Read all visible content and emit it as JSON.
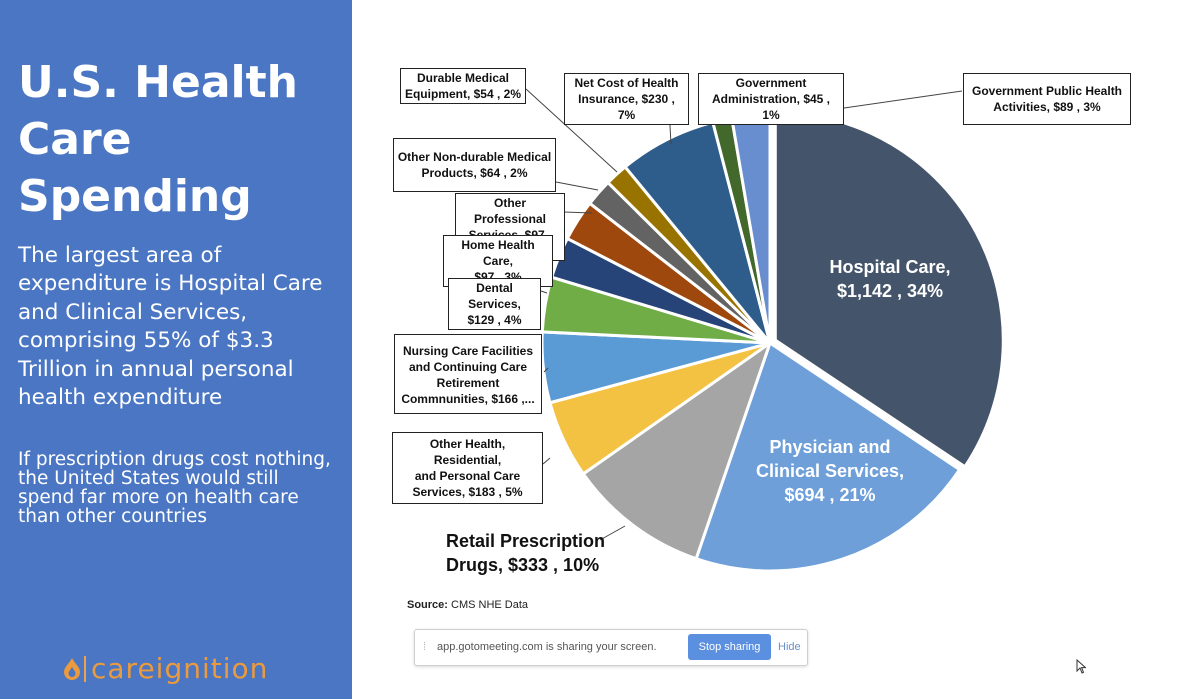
{
  "slide": {
    "title_line1": "U.S. Health",
    "title_line2": "Care Spending",
    "body_main": "The largest area of expenditure is Hospital Care and Clinical Services, comprising 55% of $3.3 Trillion in annual personal health expenditure",
    "body_secondary": "If prescription drugs cost nothing, the United States would still spend far more on health care than other countries",
    "logo_text": "careignition",
    "source_prefix": "Source:",
    "source_text": "CMS NHE Data"
  },
  "share_bar": {
    "message": "app.gotomeeting.com is sharing your screen.",
    "stop_label": "Stop sharing",
    "hide_label": "Hide"
  },
  "chart_data": {
    "type": "pie",
    "unit": "$ billions",
    "slices": [
      {
        "category": "Hospital Care",
        "value": 1142,
        "percent": 34,
        "color": "#44546a",
        "label": "Hospital Care, $1,142 , 34%"
      },
      {
        "category": "Physician and Clinical Services",
        "value": 694,
        "percent": 21,
        "color": "#6e9fd9",
        "label": "Physician and Clinical Services, $694 , 21%"
      },
      {
        "category": "Retail Prescription Drugs",
        "value": 333,
        "percent": 10,
        "color": "#a5a5a5",
        "label": "Retail Prescription Drugs, $333 , 10%"
      },
      {
        "category": "Other Health, Residential, and Personal Care Services",
        "value": 183,
        "percent": 5,
        "color": "#f4c242",
        "label": "Other Health, Residential, and Personal Care Services, $183 , 5%"
      },
      {
        "category": "Nursing Care Facilities and Continuing Care Retirement Commnunities",
        "value": 166,
        "percent": 5,
        "color": "#5b9bd5",
        "label": "Nursing Care Facilities and Continuing Care Retirement Commnunities, $166 ,..."
      },
      {
        "category": "Dental Services",
        "value": 129,
        "percent": 4,
        "color": "#70ad47",
        "label": "Dental Services, $129 , 4%"
      },
      {
        "category": "Home Health Care",
        "value": 97,
        "percent": 3,
        "color": "#264478",
        "label": "Home Health Care, $97 , 3%"
      },
      {
        "category": "Other Professional Services",
        "value": 97,
        "percent": 3,
        "color": "#9e480e",
        "label": "Other Professional Services, $97 , 3%"
      },
      {
        "category": "Other Non-durable Medical Products",
        "value": 64,
        "percent": 2,
        "color": "#636363",
        "label": "Other Non-durable Medical Products, $64 , 2%"
      },
      {
        "category": "Durable Medical Equipment",
        "value": 54,
        "percent": 2,
        "color": "#997300",
        "label": "Durable Medical Equipment, $54 , 2%"
      },
      {
        "category": "Net Cost of Health Insurance",
        "value": 230,
        "percent": 7,
        "color": "#2e5d8c",
        "label": "Net Cost of Health Insurance, $230 , 7%"
      },
      {
        "category": "Government Administration",
        "value": 45,
        "percent": 1,
        "color": "#43682b",
        "label": "Government Administration, $45 , 1%"
      },
      {
        "category": "Government Public Health Activities",
        "value": 89,
        "percent": 3,
        "color": "#698ed0",
        "label": "Government Public Health Activities, $89 , 3%"
      }
    ],
    "labels": {
      "hospital_l1": "Hospital Care,",
      "hospital_l2": "$1,142 , 34%",
      "physician_l1": "Physician and",
      "physician_l2": "Clinical Services,",
      "physician_l3": "$694 , 21%",
      "retail_l1": "Retail Prescription",
      "retail_l2": "Drugs,  $333 , 10%",
      "other_health_l1": "Other Health, Residential,",
      "other_health_l2": "and Personal Care",
      "other_health_l3": "Services,  $183 , 5%",
      "nursing_l1": "Nursing Care Facilities",
      "nursing_l2": "and Continuing Care",
      "nursing_l3": "Retirement",
      "nursing_l4": "Commnunities,  $166 ,...",
      "dental_l1": "Dental Services,",
      "dental_l2": "$129 , 4%",
      "home_l1": "Home Health Care,",
      "home_l2": "$97 , 3%",
      "other_prof_l1": "Other Professional",
      "other_prof_l2": "Services,  $97 , 3%",
      "non_durable_l1": "Other Non-durable Medical",
      "non_durable_l2": "Products,  $64 , 2%",
      "durable_l1": "Durable Medical",
      "durable_l2": "Equipment,  $54 , 2%",
      "insurance_l1": "Net Cost of Health",
      "insurance_l2": "Insurance,  $230 , 7%",
      "gov_admin_l1": "Government",
      "gov_admin_l2": "Administration,  $45 , 1%",
      "gov_public_l1": "Government Public Health",
      "gov_public_l2": "Activities,  $89 , 3%"
    }
  }
}
